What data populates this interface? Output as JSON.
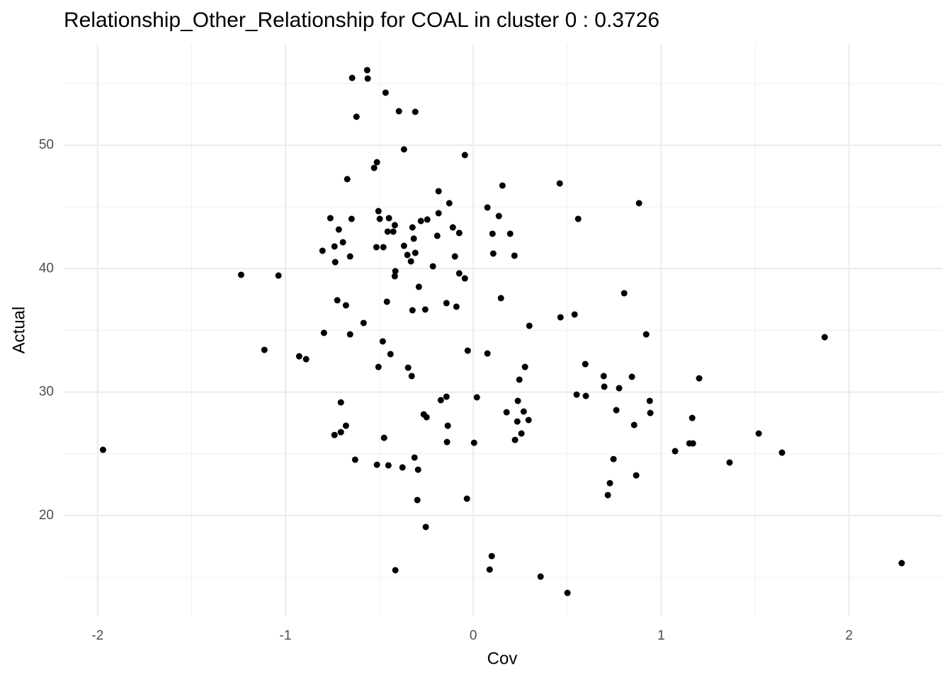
{
  "chart_data": {
    "type": "scatter",
    "title": "Relationship_Other_Relationship for COAL in cluster 0 : 0.3726",
    "x_label": "Cov",
    "y_label": "Actual",
    "color": "#000000",
    "grid": true,
    "xlim": [
      -2.18,
      2.495
    ],
    "ylim": [
      11.85,
      58.2
    ],
    "xticks": [
      -2,
      -1,
      0,
      1,
      2
    ],
    "yticks": [
      20,
      30,
      40,
      50
    ],
    "x_minor_grid": [
      -1.5,
      -0.5,
      0.5,
      1.5
    ],
    "y_minor_grid": [
      15,
      25,
      35,
      45,
      55
    ],
    "x": [
      -1.971,
      -1.236,
      -1.037,
      -1.112,
      -0.927,
      -0.89,
      -0.803,
      -0.795,
      -0.761,
      -0.739,
      -0.735,
      -0.716,
      -0.694,
      -0.724,
      -0.678,
      -0.656,
      -0.645,
      -0.622,
      -0.671,
      -0.648,
      -0.656,
      -0.565,
      -0.562,
      -0.584,
      -0.739,
      -0.705,
      -0.705,
      -0.678,
      -0.629,
      -0.528,
      -0.513,
      -0.505,
      -0.498,
      -0.516,
      -0.479,
      -0.467,
      -0.482,
      -0.505,
      -0.475,
      -0.513,
      -0.452,
      -0.449,
      -0.456,
      -0.426,
      -0.418,
      -0.46,
      -0.441,
      -0.418,
      -0.415,
      -0.396,
      -0.369,
      -0.369,
      -0.351,
      -0.332,
      -0.324,
      -0.317,
      -0.309,
      -0.324,
      -0.29,
      -0.279,
      -0.245,
      -0.309,
      -0.256,
      -0.215,
      -0.347,
      -0.328,
      -0.415,
      -0.377,
      -0.313,
      -0.294,
      -0.298,
      -0.264,
      -0.249,
      -0.253,
      -0.185,
      -0.185,
      -0.192,
      -0.128,
      -0.109,
      -0.075,
      -0.098,
      -0.075,
      -0.045,
      -0.09,
      -0.143,
      -0.045,
      -0.03,
      -0.143,
      -0.173,
      -0.136,
      -0.14,
      0.019,
      0.004,
      -0.034,
      0.075,
      0.136,
      0.102,
      0.106,
      0.155,
      0.147,
      0.075,
      0.098,
      0.087,
      0.177,
      0.196,
      0.219,
      0.298,
      0.237,
      0.245,
      0.275,
      0.268,
      0.234,
      0.294,
      0.256,
      0.222,
      0.46,
      0.558,
      0.464,
      0.539,
      0.358,
      0.501,
      0.596,
      0.55,
      0.599,
      0.694,
      0.697,
      0.803,
      0.776,
      0.761,
      0.746,
      0.727,
      0.716,
      0.882,
      0.92,
      0.844,
      0.939,
      0.942,
      0.856,
      0.867,
      1.074,
      1.165,
      1.15,
      1.169,
      1.202,
      1.364,
      1.519,
      1.643,
      1.87,
      2.28
    ],
    "values": [
      25.33,
      39.5,
      39.44,
      33.42,
      32.9,
      32.67,
      41.45,
      34.8,
      44.09,
      41.8,
      40.53,
      43.17,
      42.14,
      37.44,
      37.03,
      34.68,
      55.45,
      52.3,
      47.25,
      44.03,
      40.99,
      56.08,
      55.39,
      35.6,
      26.53,
      29.17,
      26.76,
      27.28,
      24.53,
      48.16,
      48.62,
      44.66,
      44.03,
      41.74,
      41.74,
      54.25,
      34.11,
      32.04,
      26.3,
      24.12,
      24.07,
      44.09,
      43.0,
      43.0,
      43.52,
      37.32,
      33.08,
      39.39,
      39.79,
      52.75,
      49.66,
      41.85,
      41.11,
      40.59,
      43.34,
      42.43,
      41.28,
      36.63,
      38.53,
      43.86,
      43.98,
      52.7,
      36.69,
      40.19,
      31.98,
      31.3,
      15.58,
      23.9,
      24.7,
      23.72,
      21.26,
      28.2,
      27.97,
      19.08,
      46.27,
      44.49,
      42.66,
      45.3,
      43.34,
      42.89,
      40.99,
      39.62,
      39.21,
      36.92,
      37.21,
      49.2,
      33.36,
      29.63,
      29.35,
      27.28,
      25.96,
      29.58,
      25.9,
      21.37,
      44.95,
      44.26,
      42.83,
      41.22,
      46.73,
      37.61,
      33.13,
      16.72,
      15.63,
      28.37,
      42.83,
      41.05,
      35.37,
      29.29,
      31.01,
      32.04,
      28.43,
      27.62,
      27.74,
      26.65,
      26.13,
      46.9,
      44.03,
      36.06,
      36.29,
      15.06,
      13.74,
      32.27,
      29.8,
      29.69,
      31.3,
      30.44,
      38.01,
      30.32,
      28.54,
      24.58,
      22.63,
      21.66,
      45.3,
      34.68,
      31.24,
      29.29,
      28.31,
      27.34,
      23.26,
      25.22,
      27.91,
      25.85,
      25.85,
      31.12,
      24.3,
      26.65,
      25.1,
      34.45,
      16.15
    ]
  }
}
